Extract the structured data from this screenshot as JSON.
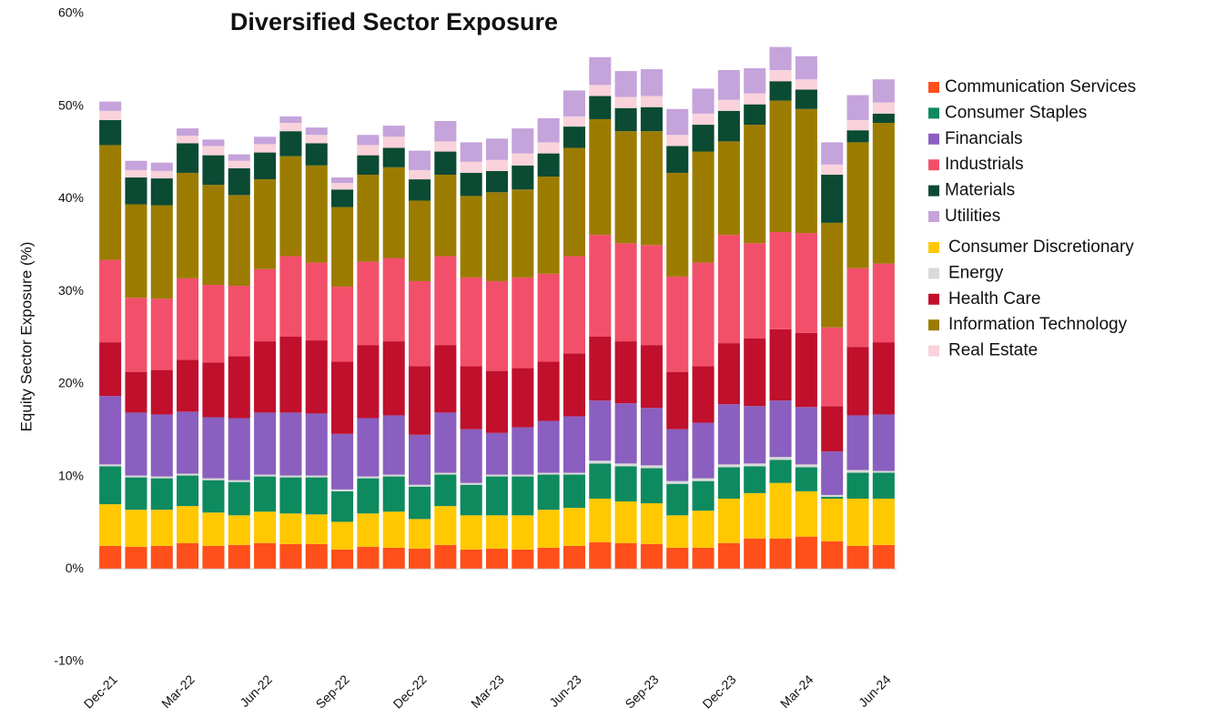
{
  "chart_data": {
    "type": "stacked_bar",
    "title": "Diversified Sector Exposure",
    "y_label": "Equity Sector Exposure (%)",
    "categories": [
      "Dec-21",
      null,
      null,
      "Mar-22",
      null,
      null,
      "Jun-22",
      null,
      null,
      "Sep-22",
      null,
      null,
      "Dec-22",
      null,
      null,
      "Mar-23",
      null,
      null,
      "Jun-23",
      null,
      null,
      "Sep-23",
      null,
      null,
      "Dec-23",
      null,
      null,
      "Mar-24",
      null,
      null,
      "Jun-24"
    ],
    "ylim": [
      -10,
      60
    ],
    "yticks": [
      {
        "value": -10,
        "label": "-10%"
      },
      {
        "value": 0,
        "label": "0%"
      },
      {
        "value": 10,
        "label": "10%"
      },
      {
        "value": 20,
        "label": "20%"
      },
      {
        "value": 30,
        "label": "30%"
      },
      {
        "value": 40,
        "label": "40%"
      },
      {
        "value": 50,
        "label": "50%"
      },
      {
        "value": 60,
        "label": "60%"
      }
    ],
    "series": [
      {
        "name": "Communication Services",
        "color": "#ff4f1a",
        "values": [
          2.5,
          2.4,
          2.5,
          2.8,
          2.5,
          2.6,
          2.8,
          2.7,
          2.7,
          2.1,
          2.4,
          2.3,
          2.2,
          2.6,
          2.1,
          2.2,
          2.1,
          2.3,
          2.5,
          2.9,
          2.8,
          2.7,
          2.3,
          2.3,
          2.8,
          3.3,
          3.3,
          3.5,
          3.0,
          2.5,
          2.6
        ]
      },
      {
        "name": "Consumer Staples",
        "color": "#0e8a5f",
        "values": [
          4.1,
          3.5,
          3.4,
          3.3,
          3.5,
          3.6,
          3.8,
          3.9,
          4.0,
          3.3,
          3.8,
          3.8,
          3.5,
          3.4,
          3.3,
          4.2,
          4.2,
          3.8,
          3.6,
          3.8,
          3.8,
          3.8,
          3.4,
          3.2,
          3.4,
          2.9,
          2.5,
          2.6,
          0.2,
          2.8,
          2.8
        ]
      },
      {
        "name": "Financials",
        "color": "#8a5fbf",
        "values": [
          7.4,
          6.8,
          6.7,
          6.7,
          6.6,
          6.7,
          6.7,
          6.8,
          6.7,
          6.0,
          6.3,
          6.4,
          5.4,
          6.5,
          5.8,
          4.5,
          5.1,
          5.6,
          6.1,
          6.5,
          6.5,
          6.2,
          5.6,
          6.0,
          6.5,
          6.2,
          6.1,
          6.2,
          4.7,
          5.9,
          6.1
        ]
      },
      {
        "name": "Industrials",
        "color": "#f2506a",
        "values": [
          8.9,
          8.0,
          7.7,
          8.8,
          8.4,
          7.6,
          7.8,
          8.7,
          8.4,
          8.1,
          9.0,
          9.0,
          9.2,
          9.6,
          9.6,
          9.7,
          9.8,
          9.5,
          10.5,
          11.0,
          10.6,
          10.8,
          10.3,
          11.2,
          11.7,
          10.3,
          10.5,
          10.8,
          8.5,
          8.5,
          8.5
        ]
      },
      {
        "name": "Materials",
        "color": "#0b4a33",
        "values": [
          2.7,
          2.9,
          2.9,
          3.2,
          3.2,
          2.9,
          2.9,
          2.7,
          2.4,
          1.9,
          2.1,
          2.1,
          2.3,
          2.5,
          2.5,
          2.3,
          2.6,
          2.5,
          2.3,
          2.5,
          2.5,
          2.6,
          2.9,
          2.9,
          3.3,
          2.2,
          2.1,
          2.1,
          5.2,
          1.3,
          1.0
        ]
      },
      {
        "name": "Utilities",
        "color": "#c5a3db",
        "values": [
          1.0,
          1.0,
          0.9,
          0.8,
          0.7,
          0.7,
          0.8,
          0.7,
          0.8,
          0.6,
          1.1,
          1.2,
          2.1,
          2.2,
          2.1,
          2.3,
          2.7,
          2.6,
          2.8,
          3.0,
          2.8,
          2.9,
          2.8,
          2.7,
          3.2,
          2.7,
          2.5,
          2.5,
          2.4,
          2.7,
          2.5
        ]
      },
      {
        "name": "Consumer Discretionary",
        "color": "#ffc800",
        "values": [
          4.5,
          4.0,
          3.9,
          4.0,
          3.6,
          3.2,
          3.4,
          3.3,
          3.2,
          3.0,
          3.6,
          3.9,
          3.2,
          4.2,
          3.7,
          3.6,
          3.7,
          4.1,
          4.1,
          4.7,
          4.5,
          4.4,
          3.5,
          4.0,
          4.8,
          4.9,
          6.0,
          4.9,
          4.6,
          5.1,
          5.0
        ]
      },
      {
        "name": "Energy",
        "color": "#d9d9d9",
        "values": [
          0.2,
          0.2,
          0.2,
          0.2,
          0.2,
          0.2,
          0.2,
          0.2,
          0.2,
          0.2,
          0.2,
          0.2,
          0.2,
          0.2,
          0.2,
          0.2,
          0.2,
          0.2,
          0.2,
          0.3,
          0.3,
          0.3,
          0.3,
          0.3,
          0.3,
          0.3,
          0.3,
          0.3,
          0.2,
          0.3,
          0.2
        ]
      },
      {
        "name": "Health Care",
        "color": "#c0102c",
        "values": [
          5.8,
          4.4,
          4.8,
          5.6,
          5.9,
          6.7,
          7.7,
          8.2,
          7.9,
          7.8,
          7.9,
          8.0,
          7.4,
          7.3,
          6.8,
          6.7,
          6.4,
          6.4,
          6.8,
          6.9,
          6.7,
          6.8,
          6.2,
          6.1,
          6.6,
          7.3,
          7.7,
          8.0,
          4.9,
          7.4,
          7.8
        ]
      },
      {
        "name": "Information Technology",
        "color": "#9c7c00",
        "values": [
          12.4,
          10.1,
          10.1,
          11.4,
          10.8,
          9.8,
          9.7,
          10.8,
          10.5,
          8.6,
          9.4,
          9.8,
          8.7,
          8.8,
          8.8,
          9.6,
          9.5,
          10.5,
          11.7,
          12.5,
          12.1,
          12.3,
          11.2,
          12.0,
          10.1,
          12.8,
          14.2,
          13.4,
          11.3,
          13.6,
          15.2
        ]
      },
      {
        "name": "Real Estate",
        "color": "#f9d2db",
        "values": [
          1.0,
          0.8,
          0.8,
          0.8,
          1.0,
          0.8,
          0.9,
          0.9,
          0.9,
          0.7,
          1.1,
          1.2,
          1.0,
          1.1,
          1.2,
          1.2,
          1.3,
          1.2,
          1.1,
          1.2,
          1.2,
          1.2,
          1.2,
          1.2,
          1.2,
          1.2,
          1.2,
          1.1,
          1.1,
          1.1,
          1.2
        ]
      }
    ]
  }
}
